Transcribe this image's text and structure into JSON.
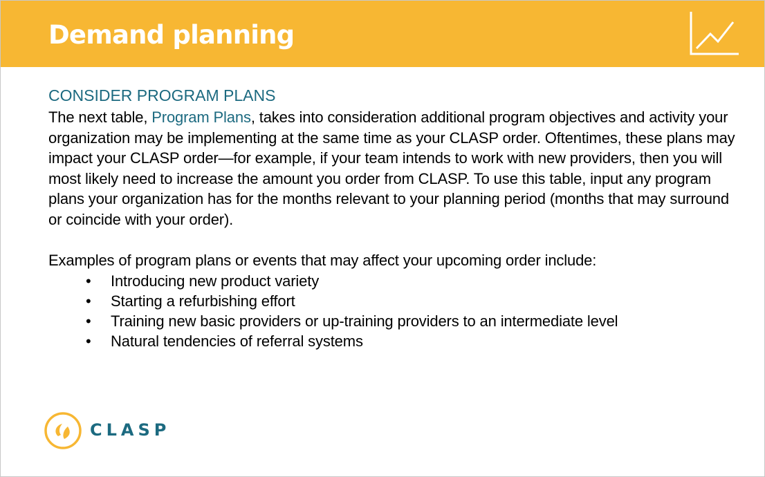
{
  "slide": {
    "title": "Demand planning",
    "header_color": "#F7B733",
    "icon": "line-chart-icon"
  },
  "content": {
    "heading": "CONSIDER PROGRAM PLANS",
    "paragraph": {
      "before_link": "The next table, ",
      "link_text": "Program Plans",
      "after_link": ", takes into consideration additional program objectives and activity your organization may be implementing at the same time as your CLASP order. Oftentimes, these plans may impact your CLASP order—for example, if your team intends to work with new providers, then you will most likely need to increase the amount you order from CLASP. To use this table, input any program plans your organization has for the months relevant to your planning period (months that may surround or coincide with your order)."
    },
    "examples_intro": "Examples of program plans or events that may affect your upcoming order include:",
    "bullet_symbol": "•",
    "bullets": [
      "Introducing new product variety",
      "Starting a refurbishing effort",
      "Training new basic providers or up-training providers to an intermediate level",
      "Natural tendencies of referral systems"
    ]
  },
  "logo": {
    "text": "CLASP",
    "icon": "clasp-logo-icon",
    "ring_color": "#F7B733",
    "text_color": "#1C6A80"
  }
}
